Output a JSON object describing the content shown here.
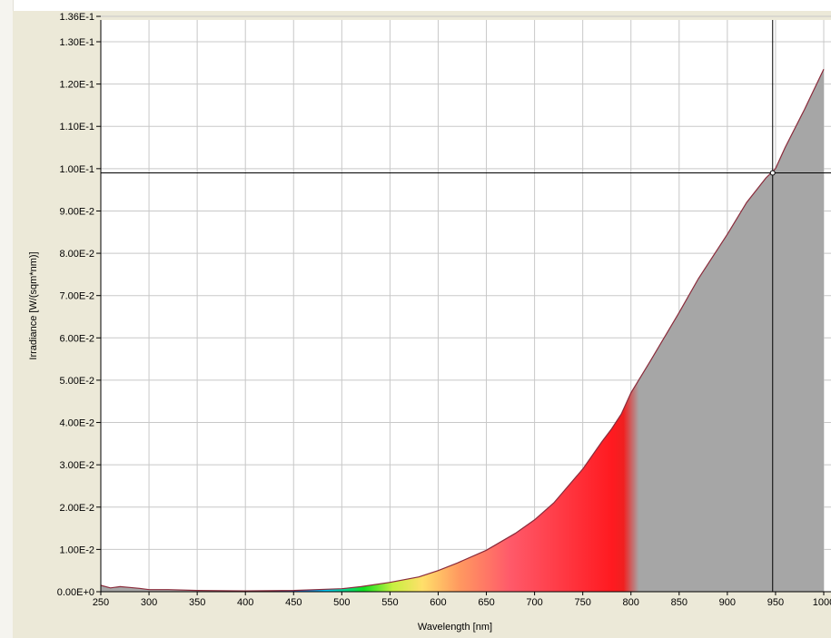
{
  "chart_data": {
    "type": "area",
    "title": "",
    "xlabel": "Wavelength [nm]",
    "ylabel": "Irradiance [W/(sqm*nm)]",
    "xlim": [
      250,
      1000
    ],
    "ylim": [
      0,
      0.136
    ],
    "x_ticks": [
      250,
      300,
      350,
      400,
      450,
      500,
      550,
      600,
      650,
      700,
      750,
      800,
      850,
      900,
      950,
      1000
    ],
    "x_tick_labels": [
      "250",
      "300",
      "350",
      "400",
      "450",
      "500",
      "550",
      "600",
      "650",
      "700",
      "750",
      "800",
      "850",
      "900",
      "950",
      "1000"
    ],
    "y_ticks": [
      0,
      0.01,
      0.02,
      0.03,
      0.04,
      0.05,
      0.06,
      0.07,
      0.08,
      0.09,
      0.1,
      0.11,
      0.12,
      0.13,
      0.136
    ],
    "y_tick_labels": [
      "0.00E+0",
      "1.00E-2",
      "2.00E-2",
      "3.00E-2",
      "4.00E-2",
      "5.00E-2",
      "6.00E-2",
      "7.00E-2",
      "8.00E-2",
      "9.00E-2",
      "1.00E-1",
      "1.10E-1",
      "1.20E-1",
      "1.30E-1",
      "1.36E-1"
    ],
    "grid": true,
    "fill": "visible-spectrum gradient 380-780 nm, gray elsewhere",
    "line_color": "#8a2a3a",
    "series": [
      {
        "x": [
          250,
          260,
          270,
          280,
          290,
          300,
          320,
          350,
          400,
          450,
          500,
          520,
          550,
          580,
          600,
          620,
          650,
          680,
          700,
          720,
          750,
          770,
          780,
          790,
          800,
          820,
          850,
          870,
          900,
          920,
          940,
          950,
          960,
          980,
          1000
        ],
        "y": [
          0.0015,
          0.0009,
          0.0012,
          0.001,
          0.0008,
          0.0005,
          0.0005,
          0.0003,
          0.0002,
          0.0003,
          0.0007,
          0.0012,
          0.0022,
          0.0035,
          0.005,
          0.0068,
          0.0098,
          0.0138,
          0.017,
          0.021,
          0.029,
          0.0355,
          0.0385,
          0.042,
          0.047,
          0.0545,
          0.066,
          0.074,
          0.0845,
          0.092,
          0.0978,
          0.1,
          0.105,
          0.114,
          0.1235
        ]
      }
    ],
    "cursor": {
      "x": 947,
      "y": 0.099
    }
  },
  "colors": {
    "panel_bg": "#ece9d8",
    "plot_bg": "#ffffff",
    "grid": "#c8c8c8",
    "gray_fill": "#a6a6a6"
  }
}
